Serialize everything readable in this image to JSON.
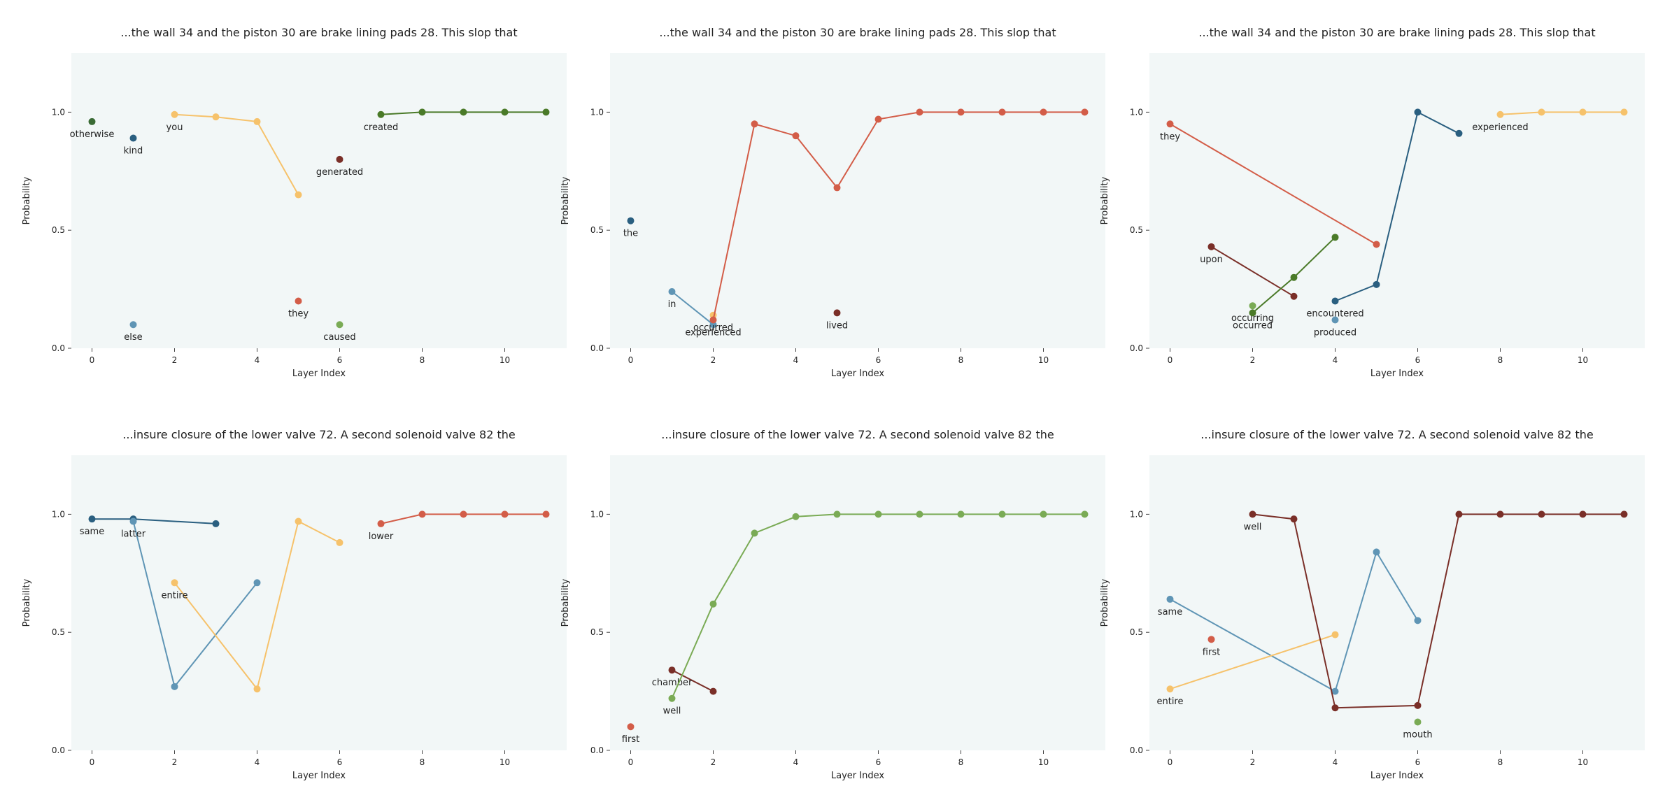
{
  "chart_data": [
    {
      "type": "line",
      "title": "...the wall 34 and the piston 30 are brake lining pads 28. This slop that",
      "xlabel": "Layer Index",
      "ylabel": "Probability",
      "xticks": [
        0,
        2,
        4,
        6,
        8,
        10
      ],
      "yticks": [
        "0.0",
        "0.5",
        "1.0"
      ],
      "xlim": [
        -0.5,
        11.5
      ],
      "ylim": [
        0,
        1.25
      ],
      "series": [
        {
          "label": "otherwise",
          "color": "#3a6b35",
          "x": [
            0
          ],
          "y": [
            0.96
          ]
        },
        {
          "label": "kind",
          "color": "#2a5f80",
          "x": [
            1
          ],
          "y": [
            0.89
          ]
        },
        {
          "label": "else",
          "color": "#5f95b5",
          "x": [
            1
          ],
          "y": [
            0.1
          ]
        },
        {
          "label": "you",
          "color": "#f6c26b",
          "x": [
            2,
            3,
            4,
            5
          ],
          "y": [
            0.99,
            0.98,
            0.96,
            0.65
          ]
        },
        {
          "label": "they",
          "color": "#d35d48",
          "x": [
            5
          ],
          "y": [
            0.2
          ]
        },
        {
          "label": "generated",
          "color": "#7a2f28",
          "x": [
            6
          ],
          "y": [
            0.8
          ]
        },
        {
          "label": "caused",
          "color": "#7aab55",
          "x": [
            6
          ],
          "y": [
            0.1
          ]
        },
        {
          "label": "created",
          "color": "#4a7a28",
          "x": [
            7,
            8,
            9,
            10,
            11
          ],
          "y": [
            0.99,
            1.0,
            1.0,
            1.0,
            1.0
          ]
        }
      ]
    },
    {
      "type": "line",
      "title": "...the wall 34 and the piston 30 are brake lining pads 28. This slop that",
      "xlabel": "Layer Index",
      "ylabel": "Probability",
      "xticks": [
        0,
        2,
        4,
        6,
        8,
        10
      ],
      "yticks": [
        "0.0",
        "0.5",
        "1.0"
      ],
      "xlim": [
        -0.5,
        11.5
      ],
      "ylim": [
        0,
        1.25
      ],
      "series": [
        {
          "label": "the",
          "color": "#2a5f80",
          "x": [
            0
          ],
          "y": [
            0.54
          ]
        },
        {
          "label": "in",
          "color": "#5f95b5",
          "x": [
            1,
            2
          ],
          "y": [
            0.24,
            0.1
          ]
        },
        {
          "label": "occurred",
          "color": "#f6c26b",
          "x": [
            2
          ],
          "y": [
            0.14
          ]
        },
        {
          "label": "experienced",
          "color": "#d35d48",
          "x": [
            2,
            3,
            4,
            5,
            6,
            7,
            8,
            9,
            10,
            11
          ],
          "y": [
            0.12,
            0.95,
            0.9,
            0.68,
            0.97,
            1.0,
            1.0,
            1.0,
            1.0,
            1.0
          ]
        },
        {
          "label": "lived",
          "color": "#7a2f28",
          "x": [
            5
          ],
          "y": [
            0.15
          ]
        }
      ]
    },
    {
      "type": "line",
      "title": "...the wall 34 and the piston 30 are brake lining pads 28. This slop that",
      "xlabel": "Layer Index",
      "ylabel": "Probability",
      "xticks": [
        0,
        2,
        4,
        6,
        8,
        10
      ],
      "yticks": [
        "0.0",
        "0.5",
        "1.0"
      ],
      "xlim": [
        -0.5,
        11.5
      ],
      "ylim": [
        0,
        1.25
      ],
      "series": [
        {
          "label": "they",
          "color": "#d35d48",
          "x": [
            0,
            5
          ],
          "y": [
            0.95,
            0.44
          ]
        },
        {
          "label": "upon",
          "color": "#7a2f28",
          "x": [
            1,
            3
          ],
          "y": [
            0.43,
            0.22
          ]
        },
        {
          "label": "occurring",
          "color": "#7aab55",
          "x": [
            2
          ],
          "y": [
            0.18
          ]
        },
        {
          "label": "occurred",
          "color": "#4a7a28",
          "x": [
            2,
            3,
            4
          ],
          "y": [
            0.15,
            0.3,
            0.47
          ]
        },
        {
          "label": "encountered",
          "color": "#2a5f80",
          "x": [
            4,
            5,
            6,
            7
          ],
          "y": [
            0.2,
            0.27,
            1.0,
            0.91
          ]
        },
        {
          "label": "produced",
          "color": "#5f95b5",
          "x": [
            4
          ],
          "y": [
            0.12
          ]
        },
        {
          "label": "experienced",
          "color": "#f6c26b",
          "x": [
            8,
            9,
            10,
            11
          ],
          "y": [
            0.99,
            1.0,
            1.0,
            1.0
          ]
        }
      ]
    },
    {
      "type": "line",
      "title": "...insure closure of the lower valve 72. A second solenoid valve 82 the",
      "xlabel": "Layer Index",
      "ylabel": "Probability",
      "xticks": [
        0,
        2,
        4,
        6,
        8,
        10
      ],
      "yticks": [
        "0.0",
        "0.5",
        "1.0"
      ],
      "xlim": [
        -0.5,
        11.5
      ],
      "ylim": [
        0,
        1.25
      ],
      "series": [
        {
          "label": "same",
          "color": "#2a5f80",
          "x": [
            0,
            1,
            3
          ],
          "y": [
            0.98,
            0.98,
            0.96
          ]
        },
        {
          "label": "latter",
          "color": "#5f95b5",
          "x": [
            1,
            2,
            4
          ],
          "y": [
            0.97,
            0.27,
            0.71
          ]
        },
        {
          "label": "entire",
          "color": "#f6c26b",
          "x": [
            2,
            4,
            5,
            6
          ],
          "y": [
            0.71,
            0.26,
            0.97,
            0.88
          ]
        },
        {
          "label": "lower",
          "color": "#d35d48",
          "x": [
            7,
            8,
            9,
            10,
            11
          ],
          "y": [
            0.96,
            1.0,
            1.0,
            1.0,
            1.0
          ]
        }
      ]
    },
    {
      "type": "line",
      "title": "...insure closure of the lower valve 72. A second solenoid valve 82 the",
      "xlabel": "Layer Index",
      "ylabel": "Probability",
      "xticks": [
        0,
        2,
        4,
        6,
        8,
        10
      ],
      "yticks": [
        "0.0",
        "0.5",
        "1.0"
      ],
      "xlim": [
        -0.5,
        11.5
      ],
      "ylim": [
        0,
        1.25
      ],
      "series": [
        {
          "label": "first",
          "color": "#d35d48",
          "x": [
            0
          ],
          "y": [
            0.1
          ]
        },
        {
          "label": "chamber",
          "color": "#7a2f28",
          "x": [
            1,
            2
          ],
          "y": [
            0.34,
            0.25
          ]
        },
        {
          "label": "well",
          "color": "#7aab55",
          "x": [
            1,
            2,
            3,
            4,
            5,
            6,
            7,
            8,
            9,
            10,
            11
          ],
          "y": [
            0.22,
            0.62,
            0.92,
            0.99,
            1.0,
            1.0,
            1.0,
            1.0,
            1.0,
            1.0,
            1.0
          ]
        }
      ]
    },
    {
      "type": "line",
      "title": "...insure closure of the lower valve 72. A second solenoid valve 82 the",
      "xlabel": "Layer Index",
      "ylabel": "Probability",
      "xticks": [
        0,
        2,
        4,
        6,
        8,
        10
      ],
      "yticks": [
        "0.0",
        "0.5",
        "1.0"
      ],
      "xlim": [
        -0.5,
        11.5
      ],
      "ylim": [
        0,
        1.25
      ],
      "series": [
        {
          "label": "same",
          "color": "#5f95b5",
          "x": [
            0,
            4,
            5,
            6
          ],
          "y": [
            0.64,
            0.25,
            0.84,
            0.55
          ]
        },
        {
          "label": "entire",
          "color": "#f6c26b",
          "x": [
            0,
            4
          ],
          "y": [
            0.26,
            0.49
          ]
        },
        {
          "label": "first",
          "color": "#d35d48",
          "x": [
            1
          ],
          "y": [
            0.47
          ]
        },
        {
          "label": "well",
          "color": "#7a2f28",
          "x": [
            2,
            3,
            4,
            6,
            7,
            8,
            9,
            10,
            11
          ],
          "y": [
            1.0,
            0.98,
            0.18,
            0.19,
            1.0,
            1.0,
            1.0,
            1.0,
            1.0
          ]
        },
        {
          "label": "mouth",
          "color": "#7aab55",
          "x": [
            6
          ],
          "y": [
            0.12
          ]
        }
      ]
    }
  ]
}
